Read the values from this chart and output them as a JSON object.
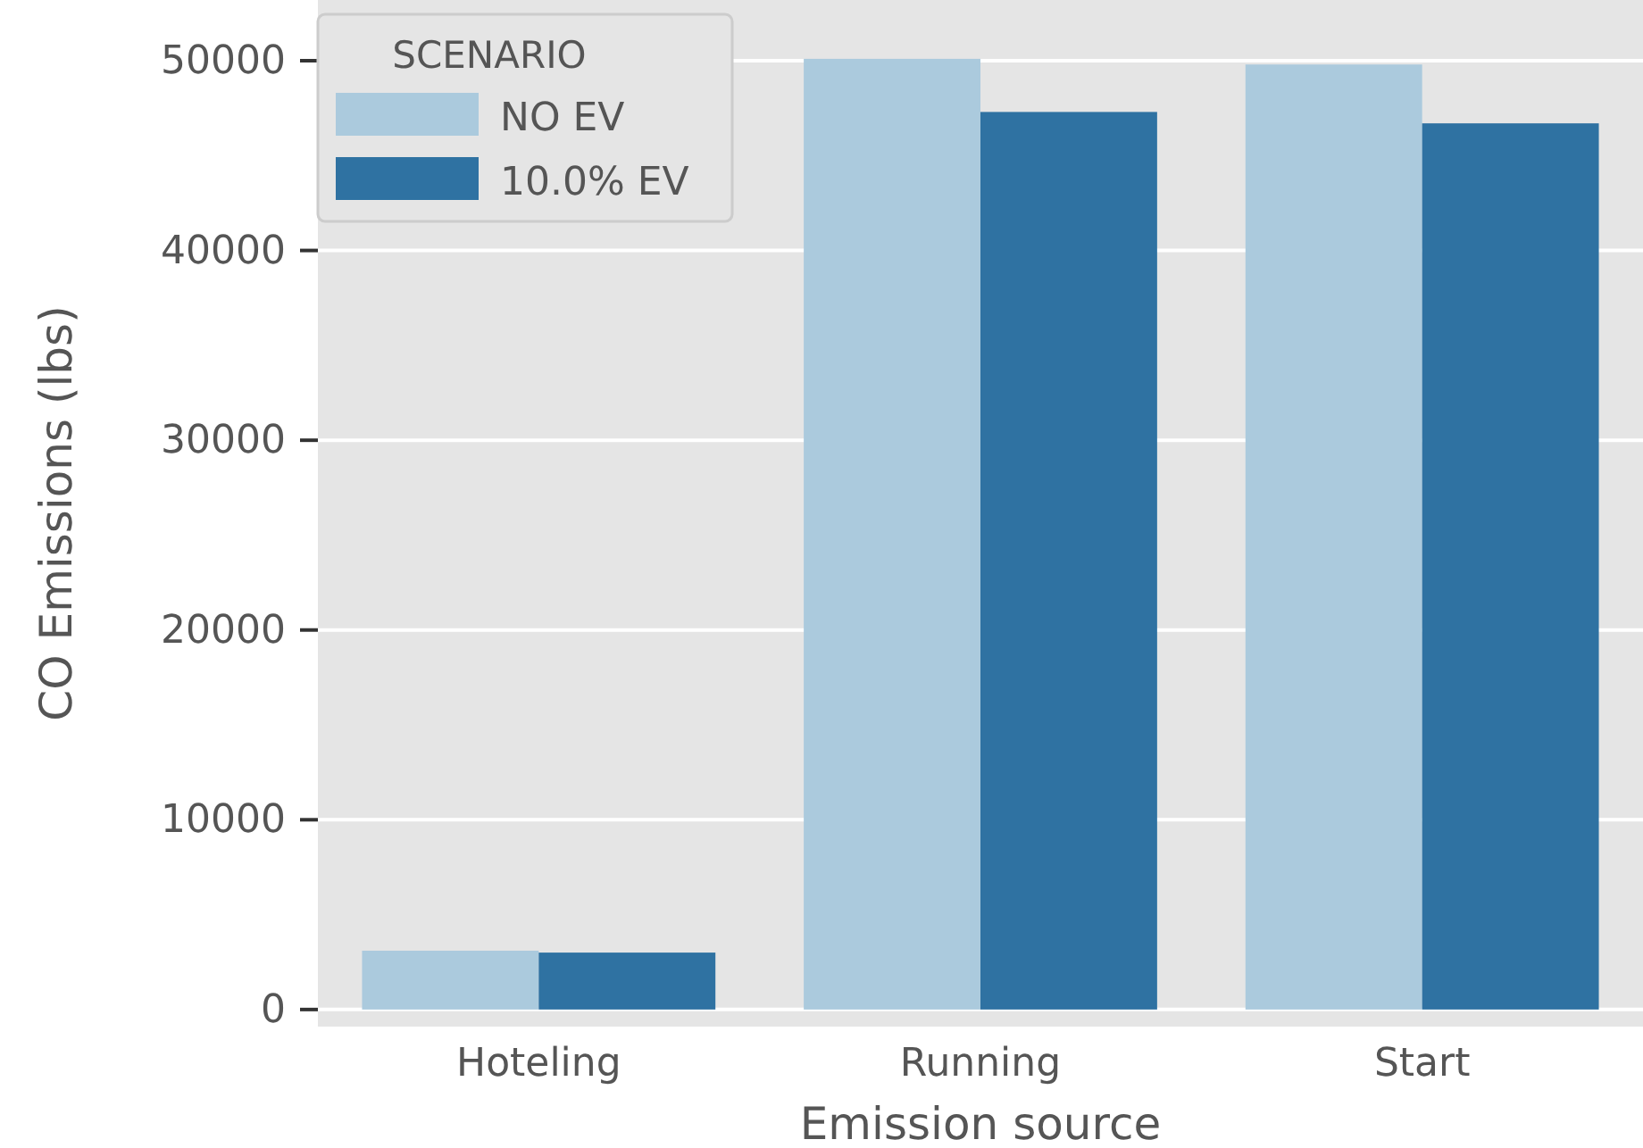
{
  "chart_data": {
    "type": "bar",
    "xlabel": "Emission source",
    "ylabel": "CO Emissions (lbs)",
    "legend_title": "SCENARIO",
    "legend": "top left",
    "grid": "y",
    "categories": [
      "Hoteling",
      "Running",
      "Start"
    ],
    "series": [
      {
        "name": "NO EV",
        "color": "#abcadd",
        "values": [
          3100,
          50100,
          49800
        ]
      },
      {
        "name": "10.0% EV",
        "color": "#2f72a2",
        "values": [
          3000,
          47300,
          46700
        ]
      }
    ],
    "ylim": [
      -900,
      53200
    ],
    "yticks": [
      0,
      10000,
      20000,
      30000,
      40000,
      50000
    ]
  }
}
